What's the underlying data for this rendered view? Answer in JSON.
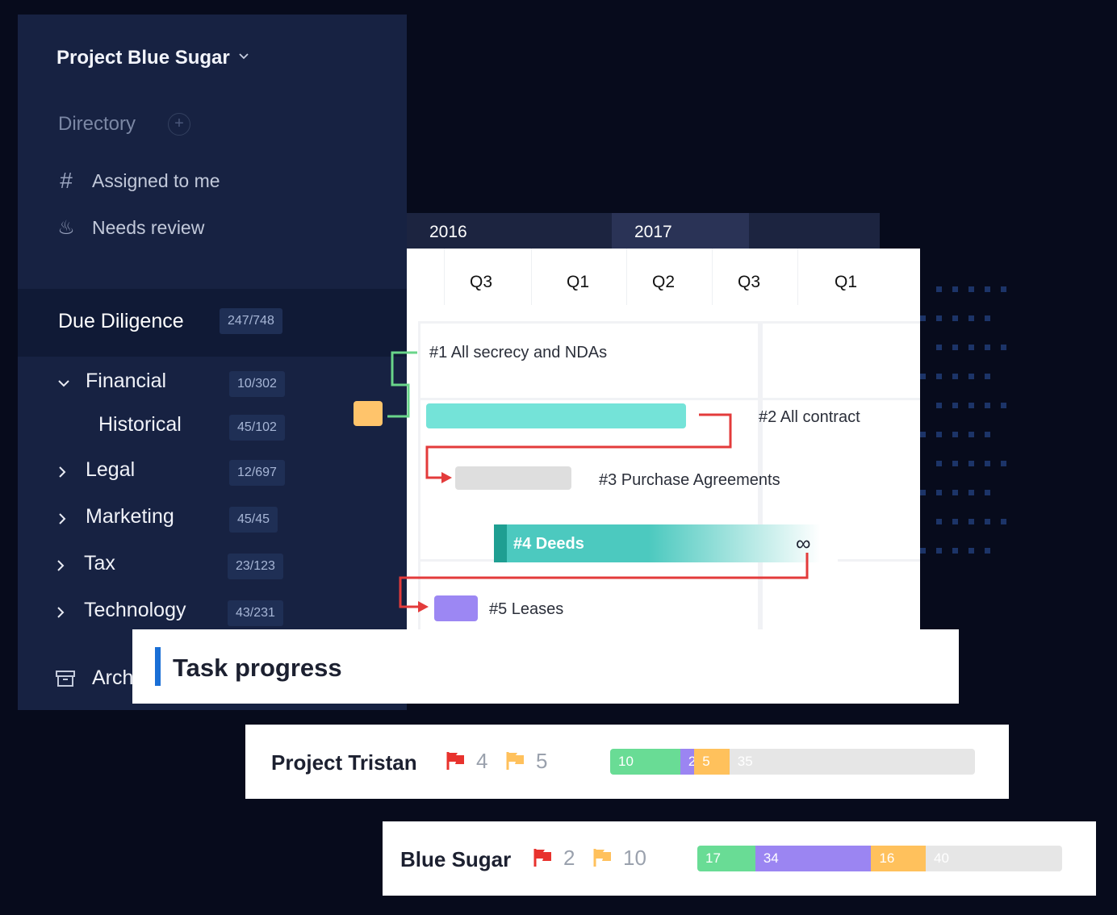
{
  "sidebar": {
    "project_title": "Project Blue Sugar",
    "directory_label": "Directory",
    "directory_add_icon": "+",
    "nav": [
      {
        "icon": "hash-icon",
        "glyph": "#",
        "label": "Assigned to me"
      },
      {
        "icon": "flame-icon",
        "glyph": "♨",
        "label": "Needs review"
      }
    ],
    "due_diligence": {
      "label": "Due Diligence",
      "count": "247/748"
    },
    "tree": [
      {
        "label": "Financial",
        "count": "10/302",
        "expanded": true
      },
      {
        "label": "Historical",
        "count": "45/102",
        "child": true
      },
      {
        "label": "Legal",
        "count": "12/697"
      },
      {
        "label": "Marketing",
        "count": "45/45"
      },
      {
        "label": "Tax",
        "count": "23/123"
      },
      {
        "label": "Technology",
        "count": "43/231"
      }
    ],
    "archive_label": "Arch"
  },
  "gantt": {
    "years": [
      "2016",
      "2017"
    ],
    "quarters": [
      "Q3",
      "Q1",
      "Q2",
      "Q3",
      "Q1"
    ],
    "tasks": [
      {
        "label": "#1 All secrecy and NDAs"
      },
      {
        "label": "#2 All contract",
        "color": "#74e3d8"
      },
      {
        "label": "#3 Purchase Agreements",
        "color": "#dedede"
      },
      {
        "label": "#4 Deeds",
        "color": "#4cc9bf",
        "icon": "∞"
      },
      {
        "label": "#5 Leases",
        "color": "#9c87f3"
      }
    ],
    "colors": {
      "dependency": "#e33b3b",
      "bracket": "#69d58a",
      "pin": "#ffc46b"
    }
  },
  "task_progress": {
    "title": "Task progress",
    "projects": [
      {
        "name": "Project Tristan",
        "red_flags": "4",
        "yellow_flags": "5",
        "segments": [
          {
            "value": "10",
            "color": "#69dc95"
          },
          {
            "value": "2",
            "color": "#9b85f2"
          },
          {
            "value": "5",
            "color": "#ffc15c"
          },
          {
            "value": "35",
            "color": "#e6e6e6"
          }
        ]
      },
      {
        "name": "Blue Sugar",
        "red_flags": "2",
        "yellow_flags": "10",
        "segments": [
          {
            "value": "17",
            "color": "#69dc95"
          },
          {
            "value": "34",
            "color": "#9b85f2"
          },
          {
            "value": "16",
            "color": "#ffc15c"
          },
          {
            "value": "40",
            "color": "#e6e6e6"
          }
        ]
      }
    ],
    "colors": {
      "accent": "#1a6fd6",
      "red_flag": "#e8322d",
      "yellow_flag": "#ffc15c"
    }
  }
}
